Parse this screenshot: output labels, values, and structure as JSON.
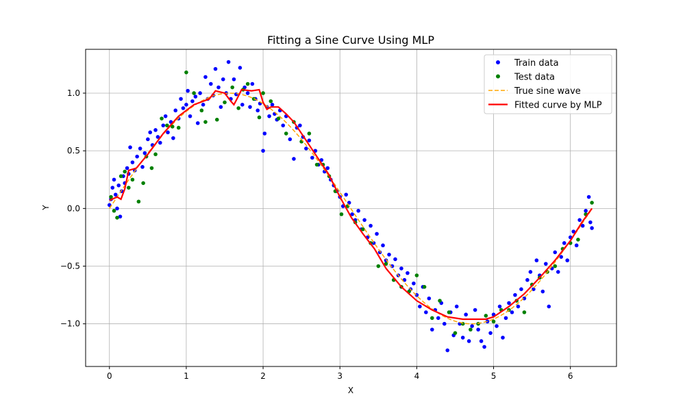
{
  "chart_data": {
    "type": "scatter",
    "title": "Fitting a Sine Curve Using MLP",
    "xlabel": "X",
    "ylabel": "Y",
    "xlim": [
      -0.31,
      6.6
    ],
    "ylim": [
      -1.37,
      1.38
    ],
    "xticks": [
      0,
      1,
      2,
      3,
      4,
      5,
      6
    ],
    "xtick_labels": [
      "0",
      "1",
      "2",
      "3",
      "4",
      "5",
      "6"
    ],
    "yticks": [
      -1.0,
      -0.5,
      0.0,
      0.5,
      1.0
    ],
    "ytick_labels": [
      "−1.0",
      "−0.5",
      "0.0",
      "0.5",
      "1.0"
    ],
    "grid": true,
    "legend_position": "top-right",
    "series": [
      {
        "name": "Train data",
        "kind": "scatter",
        "color": "#0000ff",
        "points": [
          [
            0.0,
            0.03
          ],
          [
            0.02,
            0.08
          ],
          [
            0.04,
            0.18
          ],
          [
            0.06,
            0.25
          ],
          [
            0.08,
            0.12
          ],
          [
            0.1,
            0.0
          ],
          [
            0.12,
            0.2
          ],
          [
            0.14,
            -0.07
          ],
          [
            0.16,
            0.15
          ],
          [
            0.18,
            0.28
          ],
          [
            0.2,
            0.22
          ],
          [
            0.23,
            0.35
          ],
          [
            0.25,
            0.3
          ],
          [
            0.27,
            0.53
          ],
          [
            0.3,
            0.4
          ],
          [
            0.33,
            0.33
          ],
          [
            0.36,
            0.45
          ],
          [
            0.4,
            0.52
          ],
          [
            0.43,
            0.36
          ],
          [
            0.46,
            0.48
          ],
          [
            0.5,
            0.6
          ],
          [
            0.53,
            0.66
          ],
          [
            0.56,
            0.55
          ],
          [
            0.6,
            0.68
          ],
          [
            0.63,
            0.62
          ],
          [
            0.66,
            0.57
          ],
          [
            0.7,
            0.72
          ],
          [
            0.73,
            0.8
          ],
          [
            0.76,
            0.66
          ],
          [
            0.8,
            0.75
          ],
          [
            0.83,
            0.61
          ],
          [
            0.86,
            0.85
          ],
          [
            0.9,
            0.78
          ],
          [
            0.93,
            0.95
          ],
          [
            0.96,
            0.87
          ],
          [
            1.0,
            0.9
          ],
          [
            1.02,
            1.02
          ],
          [
            1.05,
            0.8
          ],
          [
            1.08,
            0.93
          ],
          [
            1.12,
            0.97
          ],
          [
            1.15,
            0.74
          ],
          [
            1.18,
            1.0
          ],
          [
            1.22,
            0.9
          ],
          [
            1.25,
            1.14
          ],
          [
            1.28,
            0.95
          ],
          [
            1.32,
            1.08
          ],
          [
            1.35,
            0.98
          ],
          [
            1.38,
            1.21
          ],
          [
            1.42,
            1.05
          ],
          [
            1.45,
            0.88
          ],
          [
            1.48,
            1.12
          ],
          [
            1.52,
            1.0
          ],
          [
            1.55,
            1.27
          ],
          [
            1.58,
            0.95
          ],
          [
            1.62,
            1.12
          ],
          [
            1.65,
            0.99
          ],
          [
            1.7,
            1.22
          ],
          [
            1.73,
            0.9
          ],
          [
            1.76,
            1.05
          ],
          [
            1.8,
            1.0
          ],
          [
            1.83,
            0.88
          ],
          [
            1.86,
            1.08
          ],
          [
            1.9,
            0.95
          ],
          [
            1.93,
            0.85
          ],
          [
            1.96,
            0.91
          ],
          [
            2.0,
            0.5
          ],
          [
            2.02,
            0.65
          ],
          [
            2.05,
            0.88
          ],
          [
            2.08,
            0.8
          ],
          [
            2.12,
            0.9
          ],
          [
            2.15,
            0.82
          ],
          [
            2.18,
            0.77
          ],
          [
            2.22,
            0.85
          ],
          [
            2.26,
            0.72
          ],
          [
            2.3,
            0.8
          ],
          [
            2.35,
            0.6
          ],
          [
            2.4,
            0.43
          ],
          [
            2.44,
            0.7
          ],
          [
            2.48,
            0.72
          ],
          [
            2.52,
            0.62
          ],
          [
            2.56,
            0.52
          ],
          [
            2.6,
            0.59
          ],
          [
            2.64,
            0.44
          ],
          [
            2.68,
            0.5
          ],
          [
            2.72,
            0.38
          ],
          [
            2.76,
            0.42
          ],
          [
            2.8,
            0.32
          ],
          [
            2.84,
            0.35
          ],
          [
            2.88,
            0.25
          ],
          [
            2.92,
            0.2
          ],
          [
            2.96,
            0.15
          ],
          [
            3.0,
            0.1
          ],
          [
            3.04,
            0.02
          ],
          [
            3.08,
            0.12
          ],
          [
            3.12,
            0.05
          ],
          [
            3.16,
            -0.05
          ],
          [
            3.2,
            -0.1
          ],
          [
            3.24,
            -0.02
          ],
          [
            3.28,
            -0.18
          ],
          [
            3.32,
            -0.1
          ],
          [
            3.36,
            -0.25
          ],
          [
            3.4,
            -0.15
          ],
          [
            3.44,
            -0.3
          ],
          [
            3.48,
            -0.22
          ],
          [
            3.52,
            -0.38
          ],
          [
            3.56,
            -0.32
          ],
          [
            3.6,
            -0.45
          ],
          [
            3.64,
            -0.4
          ],
          [
            3.68,
            -0.5
          ],
          [
            3.72,
            -0.44
          ],
          [
            3.76,
            -0.58
          ],
          [
            3.8,
            -0.52
          ],
          [
            3.84,
            -0.62
          ],
          [
            3.88,
            -0.56
          ],
          [
            3.92,
            -0.7
          ],
          [
            3.96,
            -0.65
          ],
          [
            4.0,
            -0.75
          ],
          [
            4.04,
            -0.85
          ],
          [
            4.08,
            -0.68
          ],
          [
            4.12,
            -0.9
          ],
          [
            4.16,
            -0.78
          ],
          [
            4.2,
            -1.05
          ],
          [
            4.24,
            -0.88
          ],
          [
            4.28,
            -0.95
          ],
          [
            4.32,
            -0.82
          ],
          [
            4.36,
            -1.0
          ],
          [
            4.4,
            -1.23
          ],
          [
            4.44,
            -0.9
          ],
          [
            4.48,
            -1.1
          ],
          [
            4.52,
            -0.85
          ],
          [
            4.56,
            -1.0
          ],
          [
            4.6,
            -1.12
          ],
          [
            4.64,
            -0.92
          ],
          [
            4.68,
            -1.15
          ],
          [
            4.72,
            -1.02
          ],
          [
            4.76,
            -0.88
          ],
          [
            4.8,
            -1.05
          ],
          [
            4.84,
            -1.15
          ],
          [
            4.88,
            -1.2
          ],
          [
            4.92,
            -0.98
          ],
          [
            4.96,
            -1.08
          ],
          [
            5.0,
            -0.92
          ],
          [
            5.04,
            -1.02
          ],
          [
            5.08,
            -0.85
          ],
          [
            5.12,
            -1.12
          ],
          [
            5.16,
            -0.95
          ],
          [
            5.2,
            -0.82
          ],
          [
            5.24,
            -0.9
          ],
          [
            5.28,
            -0.75
          ],
          [
            5.32,
            -0.85
          ],
          [
            5.36,
            -0.7
          ],
          [
            5.4,
            -0.78
          ],
          [
            5.44,
            -0.62
          ],
          [
            5.48,
            -0.55
          ],
          [
            5.52,
            -0.7
          ],
          [
            5.56,
            -0.45
          ],
          [
            5.6,
            -0.58
          ],
          [
            5.64,
            -0.72
          ],
          [
            5.68,
            -0.48
          ],
          [
            5.72,
            -0.85
          ],
          [
            5.76,
            -0.52
          ],
          [
            5.8,
            -0.38
          ],
          [
            5.84,
            -0.55
          ],
          [
            5.88,
            -0.42
          ],
          [
            5.92,
            -0.3
          ],
          [
            5.96,
            -0.45
          ],
          [
            6.0,
            -0.25
          ],
          [
            6.04,
            -0.2
          ],
          [
            6.08,
            -0.32
          ],
          [
            6.12,
            -0.1
          ],
          [
            6.16,
            -0.15
          ],
          [
            6.2,
            -0.02
          ],
          [
            6.24,
            0.1
          ],
          [
            6.26,
            -0.12
          ],
          [
            6.28,
            -0.17
          ]
        ]
      },
      {
        "name": "Test data",
        "kind": "scatter",
        "color": "#008000",
        "points": [
          [
            0.02,
            0.1
          ],
          [
            0.06,
            -0.02
          ],
          [
            0.1,
            -0.08
          ],
          [
            0.15,
            0.28
          ],
          [
            0.2,
            0.32
          ],
          [
            0.25,
            0.18
          ],
          [
            0.3,
            0.25
          ],
          [
            0.38,
            0.06
          ],
          [
            0.44,
            0.22
          ],
          [
            0.48,
            0.45
          ],
          [
            0.55,
            0.35
          ],
          [
            0.6,
            0.47
          ],
          [
            0.68,
            0.78
          ],
          [
            0.75,
            0.72
          ],
          [
            0.82,
            0.71
          ],
          [
            0.9,
            0.7
          ],
          [
            1.0,
            1.18
          ],
          [
            1.1,
            1.0
          ],
          [
            1.2,
            0.85
          ],
          [
            1.25,
            0.75
          ],
          [
            1.4,
            0.77
          ],
          [
            1.5,
            0.92
          ],
          [
            1.6,
            1.05
          ],
          [
            1.68,
            0.87
          ],
          [
            1.74,
            1.03
          ],
          [
            1.8,
            1.08
          ],
          [
            1.88,
            0.95
          ],
          [
            1.95,
            0.79
          ],
          [
            2.0,
            1.0
          ],
          [
            2.1,
            0.93
          ],
          [
            2.2,
            0.78
          ],
          [
            2.3,
            0.65
          ],
          [
            2.4,
            0.75
          ],
          [
            2.5,
            0.58
          ],
          [
            2.6,
            0.65
          ],
          [
            2.7,
            0.38
          ],
          [
            2.78,
            0.38
          ],
          [
            2.86,
            0.28
          ],
          [
            2.94,
            0.15
          ],
          [
            3.02,
            -0.05
          ],
          [
            3.1,
            0.02
          ],
          [
            3.2,
            -0.12
          ],
          [
            3.3,
            -0.18
          ],
          [
            3.4,
            -0.3
          ],
          [
            3.5,
            -0.5
          ],
          [
            3.6,
            -0.48
          ],
          [
            3.7,
            -0.62
          ],
          [
            3.8,
            -0.68
          ],
          [
            3.9,
            -0.72
          ],
          [
            4.0,
            -0.58
          ],
          [
            4.1,
            -0.68
          ],
          [
            4.2,
            -0.95
          ],
          [
            4.3,
            -0.8
          ],
          [
            4.42,
            -0.9
          ],
          [
            4.5,
            -1.08
          ],
          [
            4.6,
            -1.0
          ],
          [
            4.7,
            -1.05
          ],
          [
            4.8,
            -1.0
          ],
          [
            4.9,
            -0.93
          ],
          [
            5.0,
            -0.98
          ],
          [
            5.1,
            -0.88
          ],
          [
            5.2,
            -0.88
          ],
          [
            5.3,
            -0.8
          ],
          [
            5.4,
            -0.9
          ],
          [
            5.5,
            -0.66
          ],
          [
            5.6,
            -0.6
          ],
          [
            5.7,
            -0.55
          ],
          [
            5.8,
            -0.5
          ],
          [
            5.9,
            -0.35
          ],
          [
            6.0,
            -0.3
          ],
          [
            6.1,
            -0.27
          ],
          [
            6.2,
            -0.05
          ],
          [
            6.28,
            0.05
          ]
        ]
      },
      {
        "name": "True sine wave",
        "kind": "line",
        "style": "dashed",
        "color": "#ffa500",
        "function": "sin"
      },
      {
        "name": "Fitted curve by MLP",
        "kind": "line",
        "color": "#ff0000",
        "points": [
          [
            0.0,
            0.07
          ],
          [
            0.1,
            0.1
          ],
          [
            0.15,
            0.08
          ],
          [
            0.2,
            0.17
          ],
          [
            0.25,
            0.33
          ],
          [
            0.35,
            0.35
          ],
          [
            0.5,
            0.47
          ],
          [
            0.7,
            0.65
          ],
          [
            0.9,
            0.8
          ],
          [
            1.1,
            0.9
          ],
          [
            1.3,
            0.95
          ],
          [
            1.38,
            1.02
          ],
          [
            1.5,
            1.0
          ],
          [
            1.58,
            0.93
          ],
          [
            1.62,
            0.9
          ],
          [
            1.66,
            0.95
          ],
          [
            1.72,
            1.03
          ],
          [
            1.85,
            1.02
          ],
          [
            1.95,
            1.03
          ],
          [
            2.0,
            0.92
          ],
          [
            2.05,
            0.86
          ],
          [
            2.1,
            0.88
          ],
          [
            2.2,
            0.88
          ],
          [
            2.3,
            0.82
          ],
          [
            2.4,
            0.75
          ],
          [
            2.55,
            0.6
          ],
          [
            2.7,
            0.45
          ],
          [
            2.85,
            0.3
          ],
          [
            3.0,
            0.1
          ],
          [
            3.15,
            -0.08
          ],
          [
            3.3,
            -0.22
          ],
          [
            3.45,
            -0.35
          ],
          [
            3.6,
            -0.52
          ],
          [
            3.8,
            -0.68
          ],
          [
            4.0,
            -0.8
          ],
          [
            4.2,
            -0.88
          ],
          [
            4.4,
            -0.94
          ],
          [
            4.6,
            -0.96
          ],
          [
            4.9,
            -0.96
          ],
          [
            5.0,
            -0.94
          ],
          [
            5.2,
            -0.85
          ],
          [
            5.4,
            -0.74
          ],
          [
            5.6,
            -0.6
          ],
          [
            5.8,
            -0.45
          ],
          [
            6.0,
            -0.28
          ],
          [
            6.15,
            -0.12
          ],
          [
            6.28,
            0.0
          ]
        ]
      }
    ]
  }
}
